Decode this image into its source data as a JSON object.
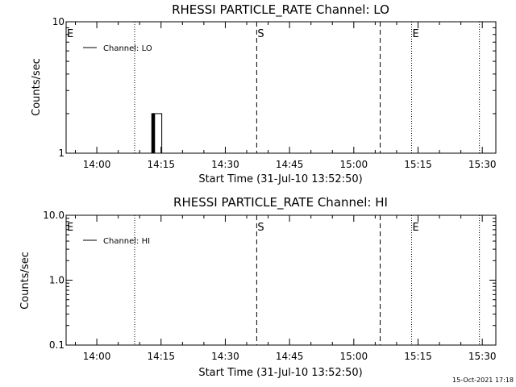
{
  "colors": {
    "background": "#ffffff",
    "foreground": "#000000"
  },
  "timestamp": "15-Oct-2021 17:18",
  "chart_data": [
    {
      "type": "line",
      "title": "RHESSI PARTICLE_RATE Channel: LO",
      "xlabel": "Start Time (31-Jul-10 13:52:50)",
      "ylabel": "Counts/sec",
      "y_scale": "log",
      "ylim": [
        1,
        10
      ],
      "y_ticks": [
        {
          "value": 1,
          "label": "1"
        },
        {
          "value": 10,
          "label": "10"
        }
      ],
      "x_range": [
        "13:52:50",
        "15:33:10"
      ],
      "x_ticks": [
        "14:00",
        "14:15",
        "14:30",
        "14:45",
        "15:00",
        "15:15",
        "15:30"
      ],
      "legend": {
        "placement": "top-left",
        "label": "Channel: LO"
      },
      "series": [
        {
          "x": [
            "14:12:40",
            "14:12:50",
            "14:13:00",
            "14:13:10",
            "14:13:20",
            "14:13:30",
            "14:13:40",
            "14:15:00",
            "14:15:10",
            "14:15:20"
          ],
          "y": [
            1,
            2,
            1,
            2,
            1,
            2,
            2,
            2,
            1,
            1
          ]
        }
      ],
      "event_lines": [
        {
          "time": "13:52:50",
          "style": "dotted",
          "label": "E"
        },
        {
          "time": "14:08:50",
          "style": "dotted",
          "label": ""
        },
        {
          "time": "14:37:20",
          "style": "dashed",
          "label": "S"
        },
        {
          "time": "15:06:10",
          "style": "dashed",
          "label": ""
        },
        {
          "time": "15:13:30",
          "style": "dotted",
          "label": "E"
        },
        {
          "time": "15:29:20",
          "style": "dotted",
          "label": ""
        }
      ]
    },
    {
      "type": "line",
      "title": "RHESSI PARTICLE_RATE Channel: HI",
      "xlabel": "Start Time (31-Jul-10 13:52:50)",
      "ylabel": "Counts/sec",
      "y_scale": "log",
      "ylim": [
        0.1,
        10
      ],
      "y_ticks": [
        {
          "value": 0.1,
          "label": "0.1"
        },
        {
          "value": 1,
          "label": "1.0"
        },
        {
          "value": 10,
          "label": "10.0"
        }
      ],
      "x_range": [
        "13:52:50",
        "15:33:10"
      ],
      "x_ticks": [
        "14:00",
        "14:15",
        "14:30",
        "14:45",
        "15:00",
        "15:15",
        "15:30"
      ],
      "legend": {
        "placement": "top-left",
        "label": "Channel: HI"
      },
      "series": [],
      "event_lines": [
        {
          "time": "13:52:50",
          "style": "dotted",
          "label": "E"
        },
        {
          "time": "14:08:50",
          "style": "dotted",
          "label": ""
        },
        {
          "time": "14:37:20",
          "style": "dashed",
          "label": "S"
        },
        {
          "time": "15:06:10",
          "style": "dashed",
          "label": ""
        },
        {
          "time": "15:13:30",
          "style": "dotted",
          "label": "E"
        },
        {
          "time": "15:29:20",
          "style": "dotted",
          "label": ""
        }
      ]
    }
  ]
}
